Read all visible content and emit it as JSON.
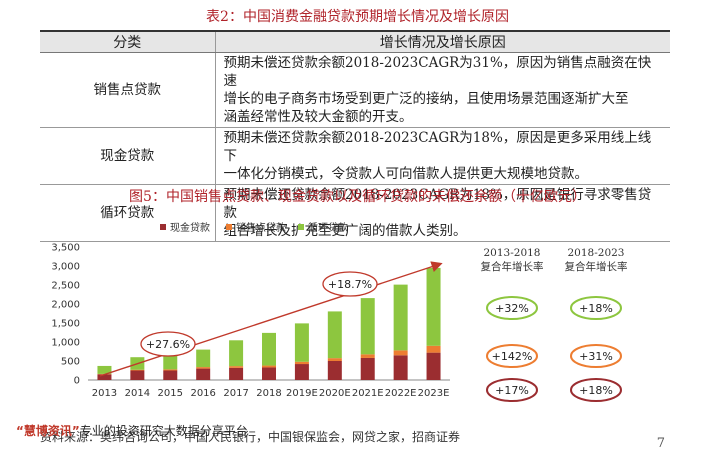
{
  "table_title": "表2：中国消费金融贷款预期增长情况及增长原因",
  "table": {
    "headers": [
      "分类",
      "增长情况及增长原因"
    ],
    "rows": [
      {
        "category": "销售点贷款",
        "lines": [
          "预期未偿还贷款余额2018-2023CAGR为31%，原因为销售点融资在快速",
          "增长的电子商务市场受到更广泛的接纳，且使用场景范围逐渐扩大至",
          "涵盖经常性及较大金额的开支。"
        ]
      },
      {
        "category": "现金贷款",
        "lines": [
          "预期未偿还贷款余额2018-2023CAGR为18%，原因是更多采用线上线下",
          "一体化分销模式，令贷款人可向借款人提供更大规模地贷款。"
        ]
      },
      {
        "category": "循环贷款",
        "lines": [
          "预期未偿还贷款余额2018-2023CAGR为18%，原因是银行寻求零售贷款",
          "组合增长及扩充至更广阔的借款人类别。"
        ]
      }
    ]
  },
  "figure_title": "图5：中国销售点贷款、现金贷款以及循环贷款的未偿还余额（十亿欧元）",
  "chart_data": {
    "type": "bar",
    "stacked": true,
    "categories": [
      "2013",
      "2014",
      "2015",
      "2016",
      "2017",
      "2018",
      "2019E",
      "2020E",
      "2021E",
      "2022E",
      "2023E"
    ],
    "series": [
      {
        "name": "现金贷款",
        "color": "#9b2d30",
        "values": [
          150,
          250,
          250,
          300,
          320,
          330,
          420,
          500,
          580,
          650,
          720
        ]
      },
      {
        "name": "销售点贷款",
        "color": "#ed7d31",
        "values": [
          10,
          20,
          30,
          40,
          45,
          50,
          60,
          75,
          95,
          130,
          180
        ]
      },
      {
        "name": "循环贷款",
        "color": "#8dc63f",
        "values": [
          210,
          330,
          420,
          460,
          680,
          860,
          1010,
          1230,
          1480,
          1730,
          2050
        ]
      }
    ],
    "ylim": [
      0,
      3500
    ],
    "yticks": [
      "0",
      "500",
      "1,000",
      "1,500",
      "2,000",
      "2,500",
      "3,000",
      "3,500"
    ],
    "annotations": [
      "+27.6%",
      "+18.7%"
    ],
    "legend": "top",
    "cagr": {
      "headers": [
        [
          "2013-2018",
          "复合年增长率"
        ],
        [
          "2018-2023",
          "复合年增长率"
        ]
      ],
      "rows": [
        {
          "color": "#8dc63f",
          "values": [
            "+32%",
            "+18%"
          ]
        },
        {
          "color": "#ed7d31",
          "values": [
            "+142%",
            "+31%"
          ]
        },
        {
          "color": "#9b2d30",
          "values": [
            "+17%",
            "+18%"
          ]
        }
      ]
    }
  },
  "footer": "资料来源：奥纬咨询公司，中国人民银行，中国银保监会，网贷之家，招商证券",
  "watermark": {
    "brand": "“慧博资讯”",
    "text": "专业的投资研究大数据分享平台"
  },
  "page_number": "7"
}
